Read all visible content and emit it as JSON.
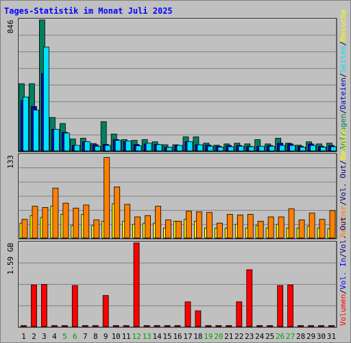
{
  "chart_data": [
    {
      "type": "bar",
      "title": "Tages-Statistik im Monat Juli 2025",
      "categories": [
        "1",
        "2",
        "3",
        "4",
        "5",
        "6",
        "7",
        "8",
        "9",
        "10",
        "11",
        "12",
        "13",
        "14",
        "15",
        "16",
        "17",
        "18",
        "19",
        "20",
        "21",
        "22",
        "23",
        "24",
        "25",
        "26",
        "27",
        "28",
        "29",
        "30",
        "31"
      ],
      "weekend_days": [
        "5",
        "6",
        "12",
        "13",
        "19",
        "20",
        "26",
        "27"
      ],
      "ymax_label": "846",
      "ylim": [
        0,
        846
      ],
      "series": [
        {
          "name": "Anfragen",
          "color": "#008060",
          "values": [
            434,
            434,
            846,
            216,
            177,
            77,
            82,
            48,
            189,
            109,
            73,
            68,
            73,
            59,
            40,
            40,
            91,
            91,
            50,
            37,
            45,
            50,
            45,
            73,
            45,
            82,
            50,
            37,
            59,
            45,
            50
          ]
        },
        {
          "name": "Dateien",
          "color": "#0000c0",
          "values": [
            325,
            287,
            500,
            140,
            120,
            36,
            60,
            40,
            42,
            73,
            60,
            42,
            45,
            42,
            24,
            35,
            60,
            40,
            38,
            30,
            35,
            35,
            30,
            30,
            35,
            50,
            45,
            30,
            45,
            30,
            35
          ]
        },
        {
          "name": "Seiten",
          "color": "#00e0ff",
          "values": [
            348,
            264,
            670,
            140,
            115,
            36,
            60,
            30,
            36,
            68,
            64,
            33,
            50,
            41,
            24,
            36,
            60,
            40,
            30,
            25,
            27,
            30,
            27,
            30,
            30,
            36,
            36,
            25,
            36,
            25,
            27
          ]
        }
      ],
      "legend": [
        "Anfragen",
        "/",
        "Dateien",
        "/",
        "Seiten",
        "/",
        "Besuche"
      ]
    },
    {
      "type": "bar",
      "categories": [
        "1",
        "2",
        "3",
        "4",
        "5",
        "6",
        "7",
        "8",
        "9",
        "10",
        "11",
        "12",
        "13",
        "14",
        "15",
        "16",
        "17",
        "18",
        "19",
        "20",
        "21",
        "22",
        "23",
        "24",
        "25",
        "26",
        "27",
        "28",
        "29",
        "30",
        "31"
      ],
      "ymax_label": "133",
      "ylim": [
        0,
        133
      ],
      "series": [
        {
          "name": "Besuche",
          "color": "#ffff00",
          "values": [
            24,
            36,
            33,
            51,
            38,
            20,
            38,
            20,
            27,
            55,
            27,
            22,
            24,
            24,
            16,
            27,
            30,
            27,
            16,
            16,
            16,
            22,
            16,
            20,
            16,
            22,
            16,
            16,
            19,
            16,
            15
          ]
        },
        {
          "name": "Rechner",
          "color": "#ff8000",
          "values": [
            30,
            51,
            49,
            80,
            56,
            48,
            53,
            29,
            129,
            82,
            54,
            34,
            36,
            51,
            29,
            27,
            43,
            42,
            41,
            24,
            38,
            37,
            38,
            27,
            34,
            34,
            47,
            29,
            40,
            30,
            44
          ]
        }
      ],
      "legend": [
        "Rechner",
        "/",
        "Vol. Out",
        "/",
        "Besuche"
      ]
    },
    {
      "type": "bar",
      "categories": [
        "1",
        "2",
        "3",
        "4",
        "5",
        "6",
        "7",
        "8",
        "9",
        "10",
        "11",
        "12",
        "13",
        "14",
        "15",
        "16",
        "17",
        "18",
        "19",
        "20",
        "21",
        "22",
        "23",
        "24",
        "25",
        "26",
        "27",
        "28",
        "29",
        "30",
        "31"
      ],
      "ymax_label": "1.59 GB",
      "ylim": [
        0,
        1.59
      ],
      "series": [
        {
          "name": "Volumen",
          "color": "#ff0000",
          "values": [
            0.02,
            0.79,
            0.8,
            0.02,
            0.02,
            0.78,
            0.02,
            0.02,
            0.59,
            0.02,
            0.02,
            1.59,
            0.02,
            0.02,
            0.02,
            0.02,
            0.47,
            0.3,
            0.02,
            0.02,
            0.02,
            0.47,
            1.08,
            0.02,
            0.02,
            0.78,
            0.79,
            0.02,
            0.02,
            0.02,
            0.02
          ]
        }
      ],
      "legend": [
        "Volumen",
        "/",
        "Vol. In",
        "/",
        "Vol. Out"
      ]
    }
  ],
  "colors": {
    "background": "#c0c0c0",
    "panel": "#c0c0c0",
    "grid": "#808080",
    "title": "#0000ff",
    "weekday_label": "#000000",
    "weekend_label": "#00a000",
    "legend_separator": "#000000",
    "legend_vol_in": "#0000ff",
    "legend_vol_out": "#000080"
  }
}
